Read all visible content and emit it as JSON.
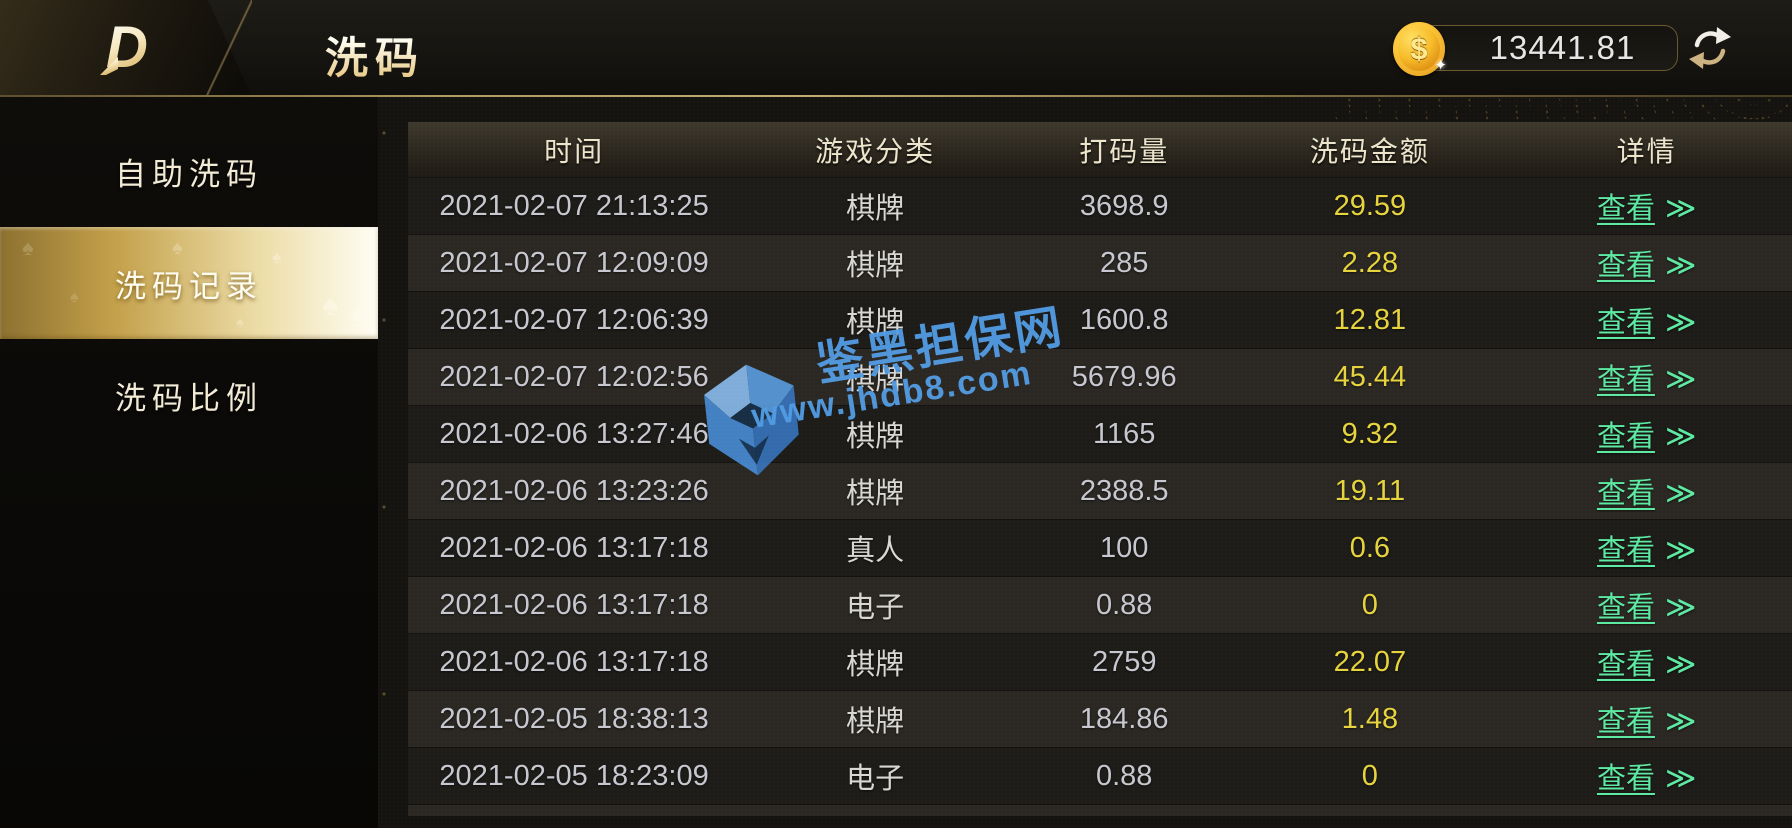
{
  "header": {
    "logo_letter": "D",
    "title": "洗码",
    "balance": "13441.81",
    "coin_symbol": "$"
  },
  "sidebar": {
    "items": [
      {
        "label": "自助洗码",
        "active": false
      },
      {
        "label": "洗码记录",
        "active": true
      },
      {
        "label": "洗码比例",
        "active": false
      }
    ]
  },
  "table": {
    "columns": [
      "时间",
      "游戏分类",
      "打码量",
      "洗码金额",
      "详情"
    ],
    "view_label": "查看",
    "view_arrow": "≫",
    "rows": [
      {
        "time": "2021-02-07 21:13:25",
        "category": "棋牌",
        "volume": "3698.9",
        "rebate": "29.59"
      },
      {
        "time": "2021-02-07 12:09:09",
        "category": "棋牌",
        "volume": "285",
        "rebate": "2.28"
      },
      {
        "time": "2021-02-07 12:06:39",
        "category": "棋牌",
        "volume": "1600.8",
        "rebate": "12.81"
      },
      {
        "time": "2021-02-07 12:02:56",
        "category": "棋牌",
        "volume": "5679.96",
        "rebate": "45.44"
      },
      {
        "time": "2021-02-06 13:27:46",
        "category": "棋牌",
        "volume": "1165",
        "rebate": "9.32"
      },
      {
        "time": "2021-02-06 13:23:26",
        "category": "棋牌",
        "volume": "2388.5",
        "rebate": "19.11"
      },
      {
        "time": "2021-02-06 13:17:18",
        "category": "真人",
        "volume": "100",
        "rebate": "0.6"
      },
      {
        "time": "2021-02-06 13:17:18",
        "category": "电子",
        "volume": "0.88",
        "rebate": "0"
      },
      {
        "time": "2021-02-06 13:17:18",
        "category": "棋牌",
        "volume": "2759",
        "rebate": "22.07"
      },
      {
        "time": "2021-02-05 18:38:13",
        "category": "棋牌",
        "volume": "184.86",
        "rebate": "1.48"
      },
      {
        "time": "2021-02-05 18:23:09",
        "category": "电子",
        "volume": "0.88",
        "rebate": "0"
      }
    ]
  },
  "watermark": {
    "site_name": "鉴黑担保网",
    "site_url": "www.jhdb8.com"
  },
  "colors": {
    "accent_gold": "#d9b96a",
    "rebate_yellow": "#e6d33e",
    "link_green": "#5de9a2",
    "watermark_blue": "#529ce4"
  }
}
